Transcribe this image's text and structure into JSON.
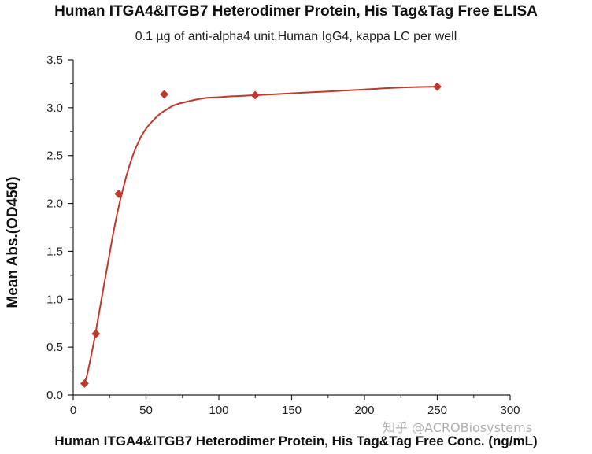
{
  "chart_data": {
    "type": "scatter",
    "title": "Human ITGA4&ITGB7 Heterodimer Protein, His Tag&Tag Free ELISA",
    "subtitle": "0.1 µg of anti-alpha4 unit,Human IgG4, kappa LC per well",
    "xlabel": "Human ITGA4&ITGB7 Heterodimer Protein, His Tag&Tag Free Conc. (ng/mL)",
    "ylabel": "Mean Abs.(OD450)",
    "xlim": [
      0,
      300
    ],
    "ylim": [
      0,
      3.5
    ],
    "x_ticks": [
      "0",
      "50",
      "100",
      "150",
      "200",
      "250",
      "300"
    ],
    "y_ticks": [
      "0.0",
      "0.5",
      "1.0",
      "1.5",
      "2.0",
      "2.5",
      "3.0",
      "3.5"
    ],
    "grid": false,
    "marker": "diamond",
    "color": "#c0392b",
    "series": [
      {
        "x": [
          7.8,
          15.6,
          31.25,
          62.5,
          125,
          250
        ],
        "y": [
          0.12,
          0.64,
          2.1,
          3.14,
          3.13,
          3.22
        ]
      }
    ],
    "fit_curve": {
      "x": [
        7.8,
        10,
        15,
        20,
        25,
        30,
        35,
        40,
        45,
        50,
        55,
        60,
        65,
        70,
        80,
        90,
        100,
        110,
        125,
        150,
        175,
        200,
        225,
        250
      ],
      "y": [
        0.12,
        0.24,
        0.62,
        1.05,
        1.48,
        1.88,
        2.2,
        2.46,
        2.65,
        2.78,
        2.87,
        2.94,
        2.99,
        3.03,
        3.07,
        3.1,
        3.11,
        3.12,
        3.13,
        3.15,
        3.17,
        3.19,
        3.21,
        3.22
      ]
    }
  },
  "watermark": "知乎 @ACROBiosystems"
}
